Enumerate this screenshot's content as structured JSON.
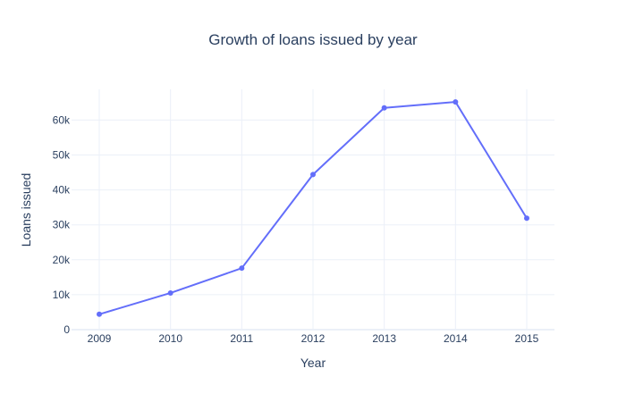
{
  "chart_data": {
    "type": "line",
    "title": "Growth of loans issued by year",
    "xlabel": "Year",
    "ylabel": "Loans issued",
    "x": [
      2009,
      2010,
      2011,
      2012,
      2013,
      2014,
      2015
    ],
    "series": [
      {
        "values": [
          4400,
          10500,
          17600,
          44400,
          63500,
          65200,
          31900
        ],
        "color": "#636efa"
      }
    ],
    "ylim": [
      0,
      68800
    ],
    "yticks": [
      0,
      10000,
      20000,
      30000,
      40000,
      50000,
      60000
    ],
    "ytick_labels": [
      "0",
      "10k",
      "20k",
      "30k",
      "40k",
      "50k",
      "60k"
    ],
    "xtick_labels": [
      "2009",
      "2010",
      "2011",
      "2012",
      "2013",
      "2014",
      "2015"
    ],
    "grid": true,
    "legend": false
  }
}
